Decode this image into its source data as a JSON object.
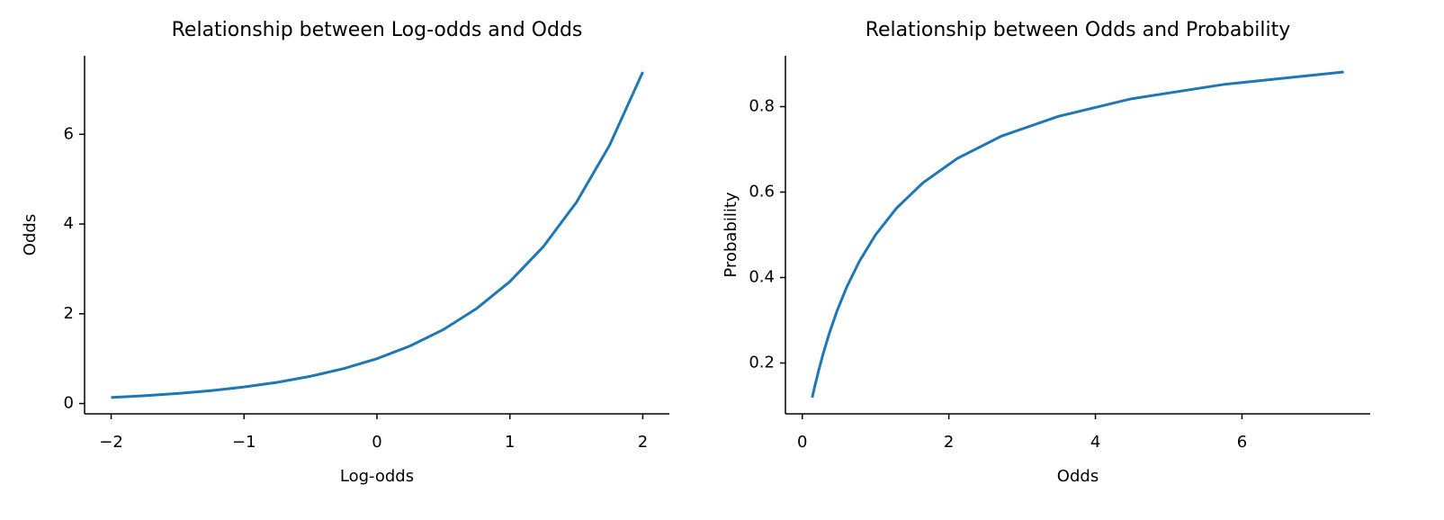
{
  "chart_data": [
    {
      "type": "line",
      "title": "Relationship between Log-odds and Odds",
      "xlabel": "Log-odds",
      "ylabel": "Odds",
      "x": [
        -2,
        -1.75,
        -1.5,
        -1.25,
        -1,
        -0.75,
        -0.5,
        -0.25,
        0,
        0.25,
        0.5,
        0.75,
        1,
        1.25,
        1.5,
        1.75,
        2
      ],
      "values": [
        0.135,
        0.174,
        0.223,
        0.287,
        0.368,
        0.472,
        0.607,
        0.779,
        1,
        1.284,
        1.649,
        2.117,
        2.718,
        3.49,
        4.482,
        5.755,
        7.389
      ],
      "color": "#1f77b4",
      "xlim": [
        -2.2,
        2.2
      ],
      "ylim": [
        -0.23,
        7.75
      ],
      "xticks": [
        {
          "value": -2,
          "label": "−2"
        },
        {
          "value": -1,
          "label": "−1"
        },
        0,
        1,
        2
      ],
      "yticks": [
        0,
        2,
        4,
        6
      ]
    },
    {
      "type": "line",
      "title": "Relationship between Odds and Probability",
      "xlabel": "Odds",
      "ylabel": "Probability",
      "x": [
        0.135,
        0.174,
        0.223,
        0.287,
        0.368,
        0.472,
        0.607,
        0.779,
        1,
        1.284,
        1.649,
        2.117,
        2.718,
        3.49,
        4.482,
        5.755,
        7.389
      ],
      "values": [
        0.119,
        0.148,
        0.182,
        0.223,
        0.269,
        0.321,
        0.378,
        0.438,
        0.5,
        0.562,
        0.622,
        0.679,
        0.731,
        0.777,
        0.818,
        0.852,
        0.881
      ],
      "color": "#1f77b4",
      "xlim": [
        -0.23,
        7.75
      ],
      "ylim": [
        0.081,
        0.919
      ],
      "xticks": [
        0,
        2,
        4,
        6
      ],
      "yticks": [
        0.2,
        0.4,
        0.6,
        0.8
      ]
    }
  ]
}
